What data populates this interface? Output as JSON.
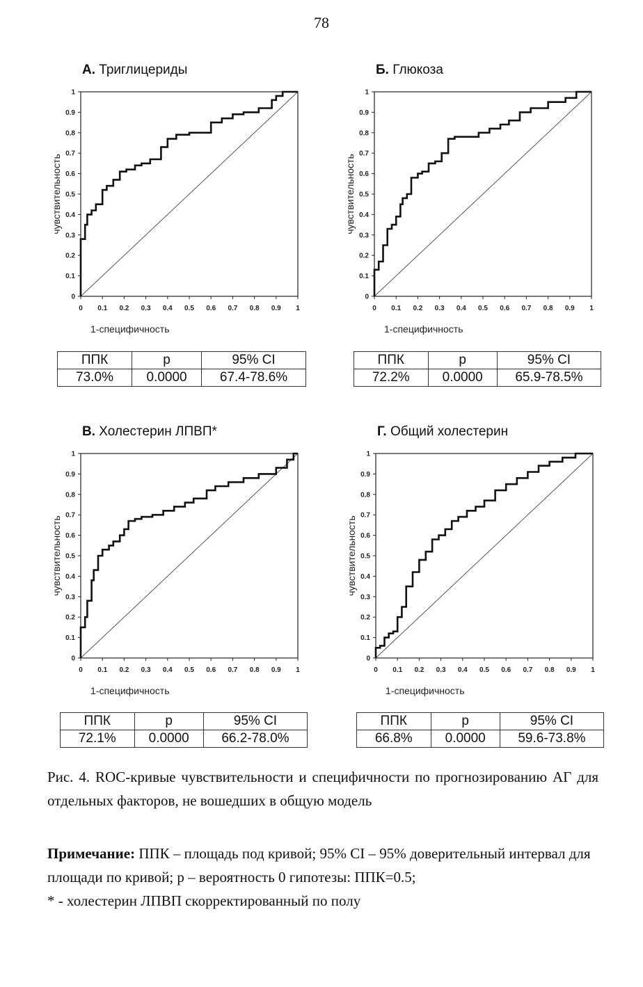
{
  "page_number": "78",
  "chart_data": [
    {
      "type": "line",
      "letter": "А.",
      "title": "Триглицериды",
      "xlabel": "1-специфичность",
      "ylabel": "чувствительность",
      "xlim": [
        0,
        1
      ],
      "ylim": [
        0,
        1
      ],
      "xticks": [
        "0",
        "0.1",
        "0.2",
        "0.3",
        "0.4",
        "0.5",
        "0.6",
        "0.7",
        "0.8",
        "0.9",
        "1"
      ],
      "yticks": [
        "0",
        "0.1",
        "0.2",
        "0.3",
        "0.4",
        "0.5",
        "0.6",
        "0.7",
        "0.8",
        "0.9",
        "1"
      ],
      "reference_line": [
        [
          0,
          0
        ],
        [
          1,
          1
        ]
      ],
      "curve": [
        [
          0,
          0
        ],
        [
          0,
          0.27
        ],
        [
          0.02,
          0.28
        ],
        [
          0.03,
          0.35
        ],
        [
          0.05,
          0.4
        ],
        [
          0.07,
          0.42
        ],
        [
          0.1,
          0.45
        ],
        [
          0.12,
          0.52
        ],
        [
          0.15,
          0.54
        ],
        [
          0.18,
          0.57
        ],
        [
          0.21,
          0.61
        ],
        [
          0.25,
          0.62
        ],
        [
          0.28,
          0.64
        ],
        [
          0.32,
          0.65
        ],
        [
          0.37,
          0.67
        ],
        [
          0.4,
          0.73
        ],
        [
          0.44,
          0.77
        ],
        [
          0.5,
          0.79
        ],
        [
          0.53,
          0.8
        ],
        [
          0.6,
          0.8
        ],
        [
          0.65,
          0.85
        ],
        [
          0.7,
          0.87
        ],
        [
          0.75,
          0.89
        ],
        [
          0.82,
          0.9
        ],
        [
          0.88,
          0.92
        ],
        [
          0.9,
          0.96
        ],
        [
          0.93,
          0.98
        ],
        [
          0.97,
          1
        ],
        [
          1,
          1
        ]
      ],
      "table": {
        "headers": [
          "ППК",
          "p",
          "95% CI"
        ],
        "values": [
          "73.0%",
          "0.0000",
          "67.4-78.6%"
        ]
      }
    },
    {
      "type": "line",
      "letter": "Б.",
      "title": "Глюкоза",
      "xlabel": "1-специфичность",
      "ylabel": "чувствительность",
      "xlim": [
        0,
        1
      ],
      "ylim": [
        0,
        1
      ],
      "xticks": [
        "0",
        "0.1",
        "0.2",
        "0.3",
        "0.4",
        "0.5",
        "0.6",
        "0.7",
        "0.8",
        "0.9",
        "1"
      ],
      "yticks": [
        "0",
        "0.1",
        "0.2",
        "0.3",
        "0.4",
        "0.5",
        "0.6",
        "0.7",
        "0.8",
        "0.9",
        "1"
      ],
      "reference_line": [
        [
          0,
          0
        ],
        [
          1,
          1
        ]
      ],
      "curve": [
        [
          0,
          0
        ],
        [
          0,
          0.1
        ],
        [
          0.02,
          0.13
        ],
        [
          0.04,
          0.17
        ],
        [
          0.06,
          0.25
        ],
        [
          0.08,
          0.33
        ],
        [
          0.1,
          0.35
        ],
        [
          0.12,
          0.39
        ],
        [
          0.13,
          0.45
        ],
        [
          0.15,
          0.48
        ],
        [
          0.17,
          0.5
        ],
        [
          0.2,
          0.58
        ],
        [
          0.22,
          0.6
        ],
        [
          0.25,
          0.61
        ],
        [
          0.28,
          0.65
        ],
        [
          0.31,
          0.66
        ],
        [
          0.34,
          0.7
        ],
        [
          0.37,
          0.77
        ],
        [
          0.42,
          0.78
        ],
        [
          0.48,
          0.78
        ],
        [
          0.53,
          0.8
        ],
        [
          0.58,
          0.82
        ],
        [
          0.62,
          0.84
        ],
        [
          0.67,
          0.86
        ],
        [
          0.72,
          0.9
        ],
        [
          0.8,
          0.92
        ],
        [
          0.88,
          0.95
        ],
        [
          0.93,
          0.97
        ],
        [
          0.97,
          1
        ],
        [
          1,
          1
        ]
      ],
      "table": {
        "headers": [
          "ППК",
          "p",
          "95% CI"
        ],
        "values": [
          "72.2%",
          "0.0000",
          "65.9-78.5%"
        ]
      }
    },
    {
      "type": "line",
      "letter": "В.",
      "title": "Холестерин ЛПВП*",
      "xlabel": "1-специфичность",
      "ylabel": "чувствительность",
      "xlim": [
        0,
        1
      ],
      "ylim": [
        0,
        1
      ],
      "xticks": [
        "0",
        "0.1",
        "0.2",
        "0.3",
        "0.4",
        "0.5",
        "0.6",
        "0.7",
        "0.8",
        "0.9",
        "1"
      ],
      "yticks": [
        "0",
        "0.1",
        "0.2",
        "0.3",
        "0.4",
        "0.5",
        "0.6",
        "0.7",
        "0.8",
        "0.9",
        "1"
      ],
      "reference_line": [
        [
          0,
          0
        ],
        [
          1,
          1
        ]
      ],
      "curve": [
        [
          0,
          0
        ],
        [
          0,
          0.13
        ],
        [
          0.02,
          0.15
        ],
        [
          0.03,
          0.2
        ],
        [
          0.05,
          0.28
        ],
        [
          0.06,
          0.38
        ],
        [
          0.08,
          0.43
        ],
        [
          0.1,
          0.5
        ],
        [
          0.13,
          0.53
        ],
        [
          0.15,
          0.55
        ],
        [
          0.18,
          0.57
        ],
        [
          0.2,
          0.6
        ],
        [
          0.22,
          0.63
        ],
        [
          0.25,
          0.67
        ],
        [
          0.28,
          0.68
        ],
        [
          0.33,
          0.69
        ],
        [
          0.38,
          0.7
        ],
        [
          0.43,
          0.72
        ],
        [
          0.48,
          0.74
        ],
        [
          0.52,
          0.76
        ],
        [
          0.58,
          0.78
        ],
        [
          0.62,
          0.82
        ],
        [
          0.68,
          0.84
        ],
        [
          0.75,
          0.86
        ],
        [
          0.82,
          0.88
        ],
        [
          0.9,
          0.9
        ],
        [
          0.95,
          0.93
        ],
        [
          0.98,
          0.97
        ],
        [
          1,
          1
        ]
      ],
      "table": {
        "headers": [
          "ППК",
          "p",
          "95% CI"
        ],
        "values": [
          "72.1%",
          "0.0000",
          "66.2-78.0%"
        ]
      }
    },
    {
      "type": "line",
      "letter": "Г.",
      "title": "Общий холестерин",
      "xlabel": "1-специфичность",
      "ylabel": "чувствительность",
      "xlim": [
        0,
        1
      ],
      "ylim": [
        0,
        1
      ],
      "xticks": [
        "0",
        "0.1",
        "0.2",
        "0.3",
        "0.4",
        "0.5",
        "0.6",
        "0.7",
        "0.8",
        "0.9",
        "1"
      ],
      "yticks": [
        "0",
        "0.1",
        "0.2",
        "0.3",
        "0.4",
        "0.5",
        "0.6",
        "0.7",
        "0.8",
        "0.9",
        "1"
      ],
      "reference_line": [
        [
          0,
          0
        ],
        [
          1,
          1
        ]
      ],
      "curve": [
        [
          0,
          0
        ],
        [
          0,
          0.04
        ],
        [
          0.02,
          0.05
        ],
        [
          0.04,
          0.06
        ],
        [
          0.06,
          0.1
        ],
        [
          0.08,
          0.12
        ],
        [
          0.1,
          0.13
        ],
        [
          0.12,
          0.2
        ],
        [
          0.14,
          0.25
        ],
        [
          0.17,
          0.35
        ],
        [
          0.2,
          0.42
        ],
        [
          0.23,
          0.48
        ],
        [
          0.26,
          0.52
        ],
        [
          0.29,
          0.58
        ],
        [
          0.32,
          0.6
        ],
        [
          0.35,
          0.63
        ],
        [
          0.38,
          0.67
        ],
        [
          0.42,
          0.69
        ],
        [
          0.46,
          0.72
        ],
        [
          0.5,
          0.74
        ],
        [
          0.55,
          0.77
        ],
        [
          0.6,
          0.82
        ],
        [
          0.65,
          0.85
        ],
        [
          0.7,
          0.88
        ],
        [
          0.75,
          0.91
        ],
        [
          0.8,
          0.94
        ],
        [
          0.86,
          0.96
        ],
        [
          0.92,
          0.98
        ],
        [
          0.96,
          1
        ],
        [
          1,
          1
        ]
      ],
      "table": {
        "headers": [
          "ППК",
          "p",
          "95% CI"
        ],
        "values": [
          "66.8%",
          "0.0000",
          "59.6-73.8%"
        ]
      }
    }
  ],
  "caption": {
    "figure_text": "Рис. 4. ROC-кривые чувствительности и специфичности по прогнозированию АГ для отдельных факторов, не вошедших в общую модель",
    "note_label": "Примечание:",
    "note_text": " ППК – площадь под кривой; 95% CI – 95% доверительный интервал для площади по кривой; p – вероятность 0 гипотезы: ППК=0.5;",
    "footnote": "* - холестерин ЛПВП скорректированный по полу"
  }
}
